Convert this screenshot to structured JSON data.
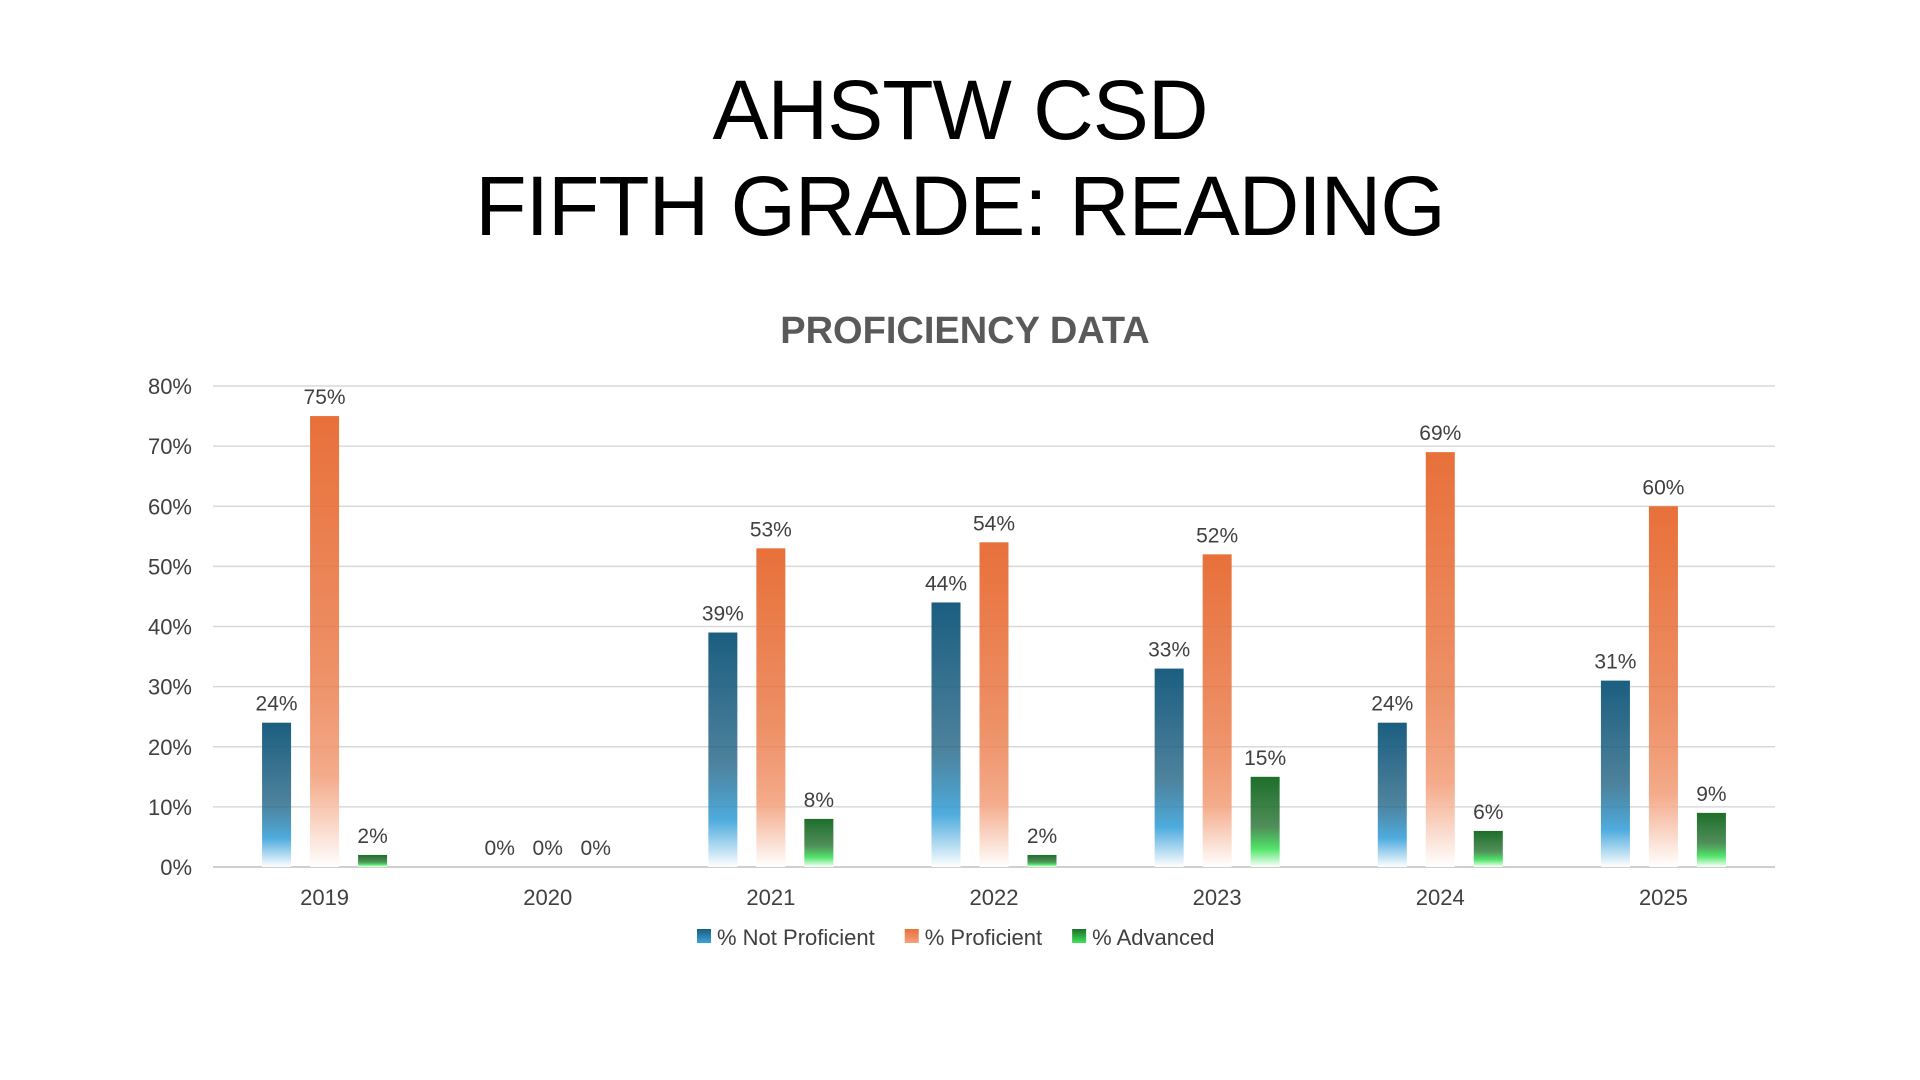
{
  "slide": {
    "title_line1": "AHSTW CSD",
    "title_line2": "FIFTH GRADE: READING"
  },
  "chart_data": {
    "type": "bar",
    "title": "PROFICIENCY DATA",
    "categories": [
      "2019",
      "2020",
      "2021",
      "2022",
      "2023",
      "2024",
      "2025"
    ],
    "series": [
      {
        "name": "% Not Proficient",
        "values": [
          24,
          0,
          39,
          44,
          33,
          24,
          31
        ],
        "color": "#1B5E80",
        "fade_color": "#3BA3DA"
      },
      {
        "name": "% Proficient",
        "values": [
          75,
          0,
          53,
          54,
          52,
          69,
          60
        ],
        "color": "#E8703A",
        "fade_color": "#F3A27E"
      },
      {
        "name": "% Advanced",
        "values": [
          2,
          0,
          8,
          2,
          15,
          6,
          9
        ],
        "color": "#1E6E2A",
        "fade_color": "#3FE35A"
      }
    ],
    "value_format": "{v}%",
    "ylim": [
      0,
      80
    ],
    "yticks": [
      "0%",
      "10%",
      "20%",
      "30%",
      "40%",
      "50%",
      "60%",
      "70%",
      "80%"
    ],
    "grid": true,
    "legend_position": "bottom",
    "xlabel": "",
    "ylabel": ""
  }
}
